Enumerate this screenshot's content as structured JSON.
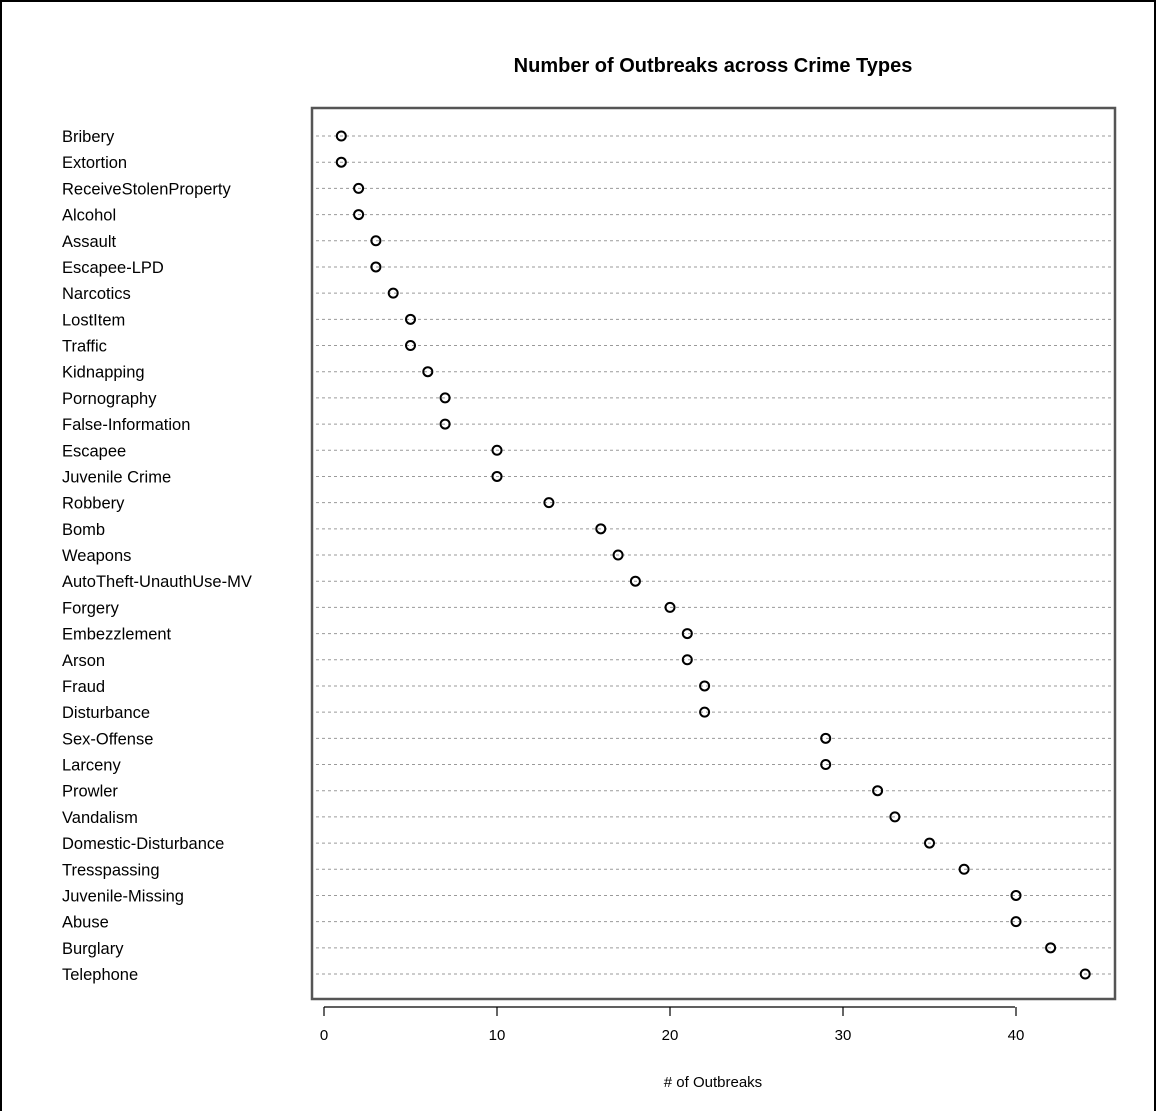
{
  "chart_data": {
    "type": "scatter",
    "title": "Number of Outbreaks across Crime Types",
    "xlabel": "# of Outbreaks",
    "ylabel": "",
    "xlim": [
      -0.7,
      45.7
    ],
    "xticks": [
      0,
      10,
      20,
      30,
      40
    ],
    "grid": "dotted horizontal lines",
    "legend": "none",
    "categories": [
      "Bribery",
      "Extortion",
      "ReceiveStolenProperty",
      "Alcohol",
      "Assault",
      "Escapee-LPD",
      "Narcotics",
      "LostItem",
      "Traffic",
      "Kidnapping",
      "Pornography",
      "False-Information",
      "Escapee",
      "Juvenile Crime",
      "Robbery",
      "Bomb",
      "Weapons",
      "AutoTheft-UnauthUse-MV",
      "Forgery",
      "Embezzlement",
      "Arson",
      "Fraud",
      "Disturbance",
      "Sex-Offense",
      "Larceny",
      "Prowler",
      "Vandalism",
      "Domestic-Disturbance",
      "Tresspassing",
      "Juvenile-Missing",
      "Abuse",
      "Burglary",
      "Telephone"
    ],
    "values": [
      1,
      1,
      2,
      2,
      3,
      3,
      4,
      5,
      5,
      6,
      7,
      7,
      10,
      10,
      13,
      16,
      17,
      18,
      20,
      21,
      21,
      22,
      22,
      29,
      29,
      32,
      33,
      35,
      37,
      40,
      40,
      42,
      44
    ]
  }
}
